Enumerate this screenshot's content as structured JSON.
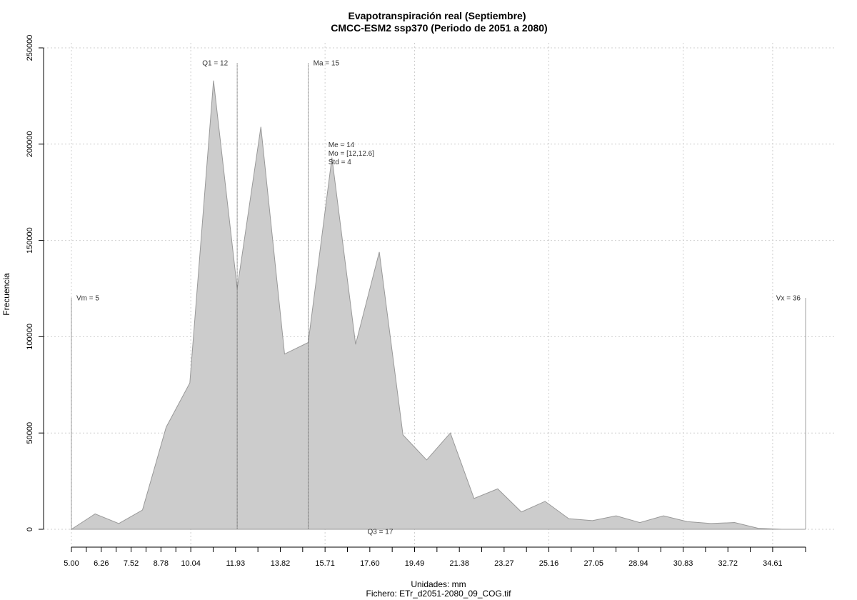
{
  "chart_data": {
    "type": "area",
    "title": "Evapotranspiración real (Septiembre)",
    "subtitle": "CMCC-ESM2 ssp370 (Periodo de 2051 a 2080)",
    "xlabel": "Unidades: mm",
    "ylabel": "Frecuencia",
    "file_label": "Fichero: ETr_d2051-2080_09_COG.tif",
    "xlim": [
      5.0,
      36.0
    ],
    "ylim": [
      0,
      250000
    ],
    "x_ticks": [
      "5.00",
      "6.26",
      "7.52",
      "8.78",
      "10.04",
      "11.93",
      "13.82",
      "15.71",
      "17.60",
      "19.49",
      "21.38",
      "23.27",
      "25.16",
      "27.05",
      "28.94",
      "30.83",
      "32.72",
      "34.61"
    ],
    "y_ticks": [
      "0",
      "50000",
      "100000",
      "150000",
      "200000",
      "250000"
    ],
    "x_grid": [
      5.0,
      10.04,
      15.71,
      19.49,
      25.16,
      30.83,
      34.61
    ],
    "grid": true,
    "fill_color": "#cccccc",
    "line_color": "#999999",
    "x": [
      5.0,
      6.0,
      7.0,
      8.0,
      9.0,
      10.0,
      11.0,
      12.0,
      13.0,
      14.0,
      15.0,
      16.0,
      17.0,
      18.0,
      19.0,
      20.0,
      21.0,
      22.0,
      23.0,
      24.0,
      25.0,
      26.0,
      27.0,
      28.0,
      29.0,
      30.0,
      31.0,
      32.0,
      33.0,
      34.0,
      35.0,
      36.0
    ],
    "values": [
      0,
      8000,
      3000,
      10000,
      53000,
      76000,
      233000,
      125000,
      209000,
      91000,
      97000,
      193000,
      96000,
      144000,
      49000,
      36000,
      50000,
      16000,
      21000,
      9000,
      14500,
      5500,
      4500,
      7000,
      3500,
      7000,
      4000,
      3000,
      3500,
      500,
      0,
      0
    ],
    "markers": [
      {
        "label": "Vm = 5",
        "x": 5.0,
        "value": 120000
      },
      {
        "label": "Q1 = 12",
        "x": 12.0,
        "value": 242000
      },
      {
        "label": "Ma = 15",
        "x": 15.0,
        "value": 242000
      },
      {
        "label": "Vx = 36",
        "x": 36.0,
        "value": 120000
      }
    ],
    "annotations": [
      {
        "label": "Me = 14",
        "x": 15.85,
        "value": 200000
      },
      {
        "label": "Mo = [12,12.6]",
        "x": 15.85,
        "value": 195500
      },
      {
        "label": "Std = 4",
        "x": 15.85,
        "value": 191000
      },
      {
        "label": "Q3 = 17",
        "x": 17.5,
        "value": -1000
      }
    ]
  }
}
